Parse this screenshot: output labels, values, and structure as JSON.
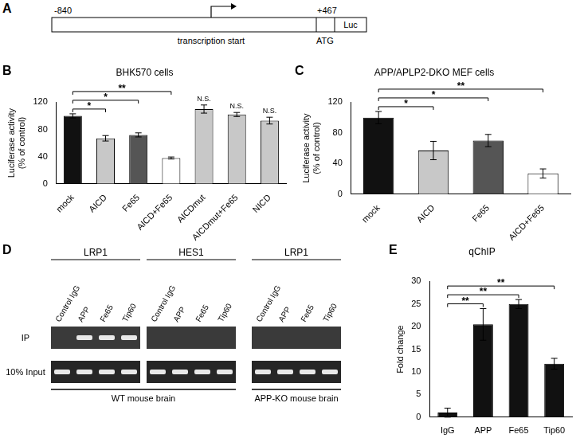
{
  "chart_data": [
    {
      "panel": "B",
      "type": "bar",
      "title": "BHK570 cells",
      "y_label": [
        "Luciferase activity",
        "(% of control)"
      ],
      "categories": [
        "mock",
        "AICD",
        "Fe65",
        "AICD+Fe65",
        "AICDmut",
        "AICDmut+Fe65",
        "NICD"
      ],
      "values": [
        100,
        67,
        72,
        38,
        110,
        102,
        93
      ],
      "errors": [
        3,
        4,
        3,
        1.5,
        6,
        3,
        5
      ],
      "colors": [
        "#111111",
        "#c8c8c8",
        "#555555",
        "#ffffff",
        "#c8c8c8",
        "#c8c8c8",
        "#c8c8c8"
      ],
      "ylim": [
        0,
        120
      ],
      "yticks": [
        0,
        40,
        80,
        120
      ],
      "grid": false,
      "significance": [
        {
          "from": "mock",
          "to": "AICD",
          "label": "*"
        },
        {
          "from": "mock",
          "to": "Fe65",
          "label": "*"
        },
        {
          "from": "mock",
          "to": "AICD+Fe65",
          "label": "**"
        }
      ],
      "annotations": [
        {
          "category": "AICDmut",
          "label": "N.S."
        },
        {
          "category": "AICDmut+Fe65",
          "label": "N.S."
        },
        {
          "category": "NICD",
          "label": "N.S."
        }
      ]
    },
    {
      "panel": "C",
      "type": "bar",
      "title": "APP/APLP2-DKO MEF cells",
      "y_label": [
        "Luciferase activity",
        "(% of control)"
      ],
      "categories": [
        "mock",
        "AICD",
        "Fe65",
        "AICD+Fe65"
      ],
      "values": [
        100,
        57,
        70,
        27
      ],
      "errors": [
        8,
        12,
        8,
        6
      ],
      "colors": [
        "#111111",
        "#c8c8c8",
        "#555555",
        "#ffffff"
      ],
      "ylim": [
        0,
        120
      ],
      "yticks": [
        0,
        40,
        80,
        120
      ],
      "grid": false,
      "significance": [
        {
          "from": "mock",
          "to": "AICD",
          "label": "*"
        },
        {
          "from": "mock",
          "to": "Fe65",
          "label": "*"
        },
        {
          "from": "mock",
          "to": "AICD+Fe65",
          "label": "**"
        }
      ],
      "annotations": []
    },
    {
      "panel": "E",
      "type": "bar",
      "title": "qChIP",
      "y_label": "Fold change",
      "categories": [
        "IgG",
        "APP",
        "Fe65",
        "Tip60"
      ],
      "values": [
        1,
        20.5,
        25,
        11.8
      ],
      "errors": [
        1,
        3.5,
        1,
        1.2
      ],
      "color": "#111111",
      "ylim": [
        0,
        30
      ],
      "yticks": [
        0,
        5,
        10,
        15,
        20,
        25,
        30
      ],
      "grid": false,
      "significance": [
        {
          "from": "IgG",
          "to": "APP",
          "label": "**"
        },
        {
          "from": "IgG",
          "to": "Fe65",
          "label": "**"
        },
        {
          "from": "IgG",
          "to": "Tip60",
          "label": "**"
        }
      ],
      "annotations": []
    }
  ],
  "diagram": {
    "panel": "A",
    "start": "-840",
    "end": "+467",
    "tss_label": "transcription start",
    "atg_label": "ATG",
    "reporter_label": "Luc"
  },
  "gel": {
    "panel": "D",
    "row_labels": [
      "IP",
      "10% Input"
    ],
    "groups": [
      {
        "gene": "LRP1",
        "tissue": "WT mouse brain",
        "lanes": [
          "Control IgG",
          "APP",
          "Fe65",
          "Tip60"
        ],
        "bands": [
          [
            false,
            true,
            true,
            true
          ],
          [
            true,
            true,
            true,
            true
          ]
        ]
      },
      {
        "gene": "HES1",
        "tissue": "WT mouse brain",
        "lanes": [
          "Control IgG",
          "APP",
          "Fe65",
          "Tip60"
        ],
        "bands": [
          [
            false,
            false,
            false,
            false
          ],
          [
            true,
            true,
            true,
            true
          ]
        ]
      },
      {
        "gene": "LRP1",
        "tissue": "APP-KO mouse brain",
        "lanes": [
          "Control IgG",
          "APP",
          "Fe65",
          "Tip60"
        ],
        "bands": [
          [
            false,
            false,
            false,
            false
          ],
          [
            true,
            true,
            true,
            true
          ]
        ]
      }
    ]
  }
}
